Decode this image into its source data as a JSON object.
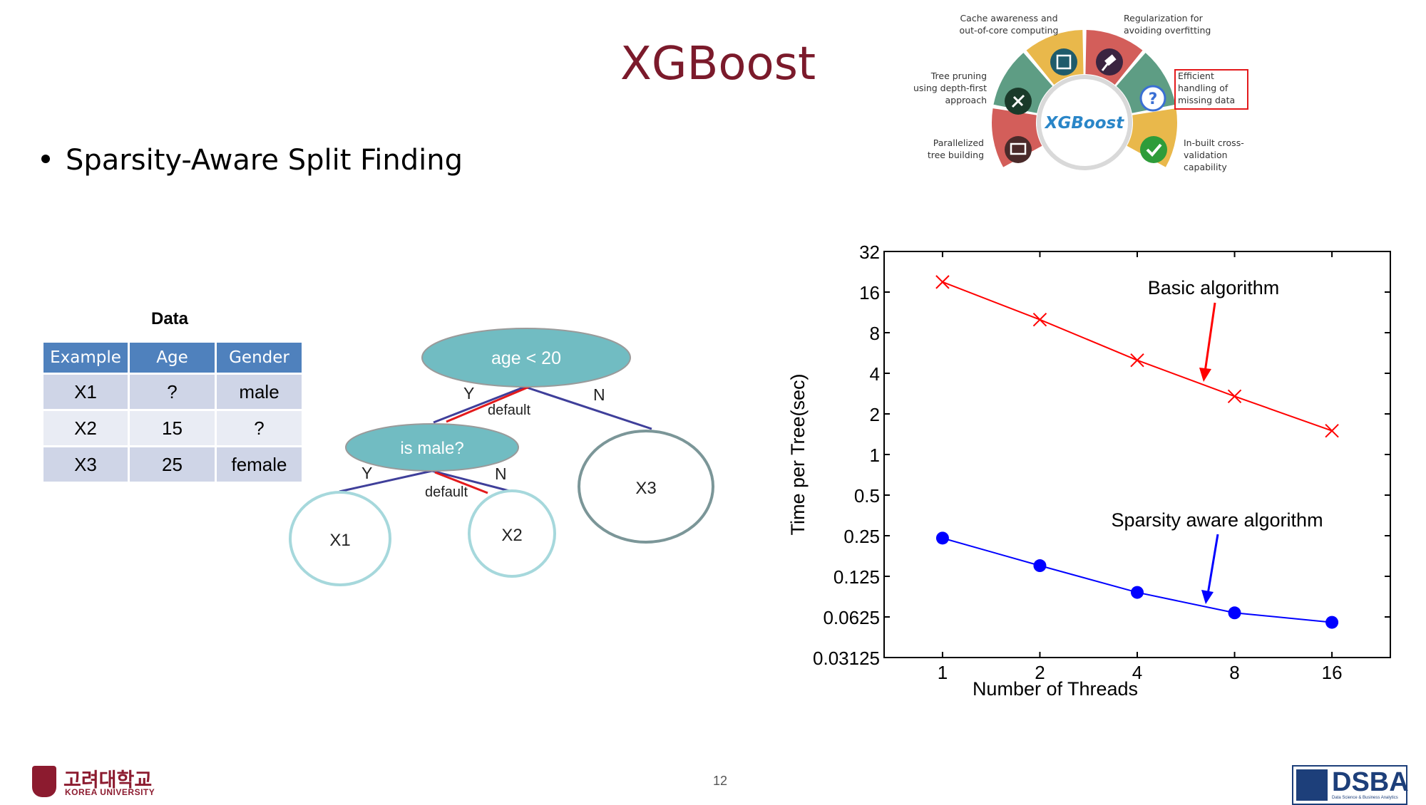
{
  "slide": {
    "title": "XGBoost",
    "bullet": "Sparsity-Aware Split Finding",
    "page_number": "12"
  },
  "table": {
    "caption": "Data",
    "headers": [
      "Example",
      "Age",
      "Gender"
    ],
    "rows": [
      [
        "X1",
        "?",
        "male"
      ],
      [
        "X2",
        "15",
        "?"
      ],
      [
        "X3",
        "25",
        "female"
      ]
    ],
    "header_color": "#4f81bd"
  },
  "tree": {
    "root": "age < 20",
    "inner": "is male?",
    "leaves": [
      "X1",
      "X2",
      "X3"
    ],
    "edge_yes": "Y",
    "edge_no": "N",
    "default_label": "default",
    "node_color": "#71bcc2",
    "default_color": "#e31a1c",
    "edge_color": "#3f3f9a"
  },
  "features_wheel": {
    "center": "XGBoost",
    "features": [
      "Cache  awareness and out-of-core computing",
      "Regularization for avoiding overfitting",
      "Tree pruning using depth-first approach",
      "Efficient handling of missing data",
      "Parallelized tree building",
      "In-built cross-validation capability"
    ],
    "highlighted": "Efficient handling of missing data"
  },
  "chart_data": {
    "type": "line",
    "xlabel": "Number of Threads",
    "ylabel": "Time per Tree(sec)",
    "x": [
      1,
      2,
      4,
      8,
      16
    ],
    "x_scale": "log2",
    "y_scale": "log2",
    "ylim": [
      0.03125,
      32
    ],
    "yticks": [
      "0.03125",
      "0.0625",
      "0.125",
      "0.25",
      "0.5",
      "1",
      "2",
      "4",
      "8",
      "16",
      "32"
    ],
    "xticks": [
      "1",
      "2",
      "4",
      "8",
      "16"
    ],
    "series": [
      {
        "name": "Basic algorithm",
        "values": [
          19,
          10,
          5,
          2.7,
          1.5
        ],
        "color": "#ff0000",
        "marker": "x"
      },
      {
        "name": "Sparsity aware algorithm",
        "values": [
          0.24,
          0.15,
          0.095,
          0.067,
          0.057
        ],
        "color": "#0000ff",
        "marker": "circle"
      }
    ],
    "annotations": [
      "Basic algorithm",
      "Sparsity aware algorithm"
    ]
  },
  "logos": {
    "university_kr": "고려대학교",
    "university_en": "KOREA UNIVERSITY",
    "lab": "DSBA",
    "lab_sub": "Data Science & Business Analytics"
  }
}
